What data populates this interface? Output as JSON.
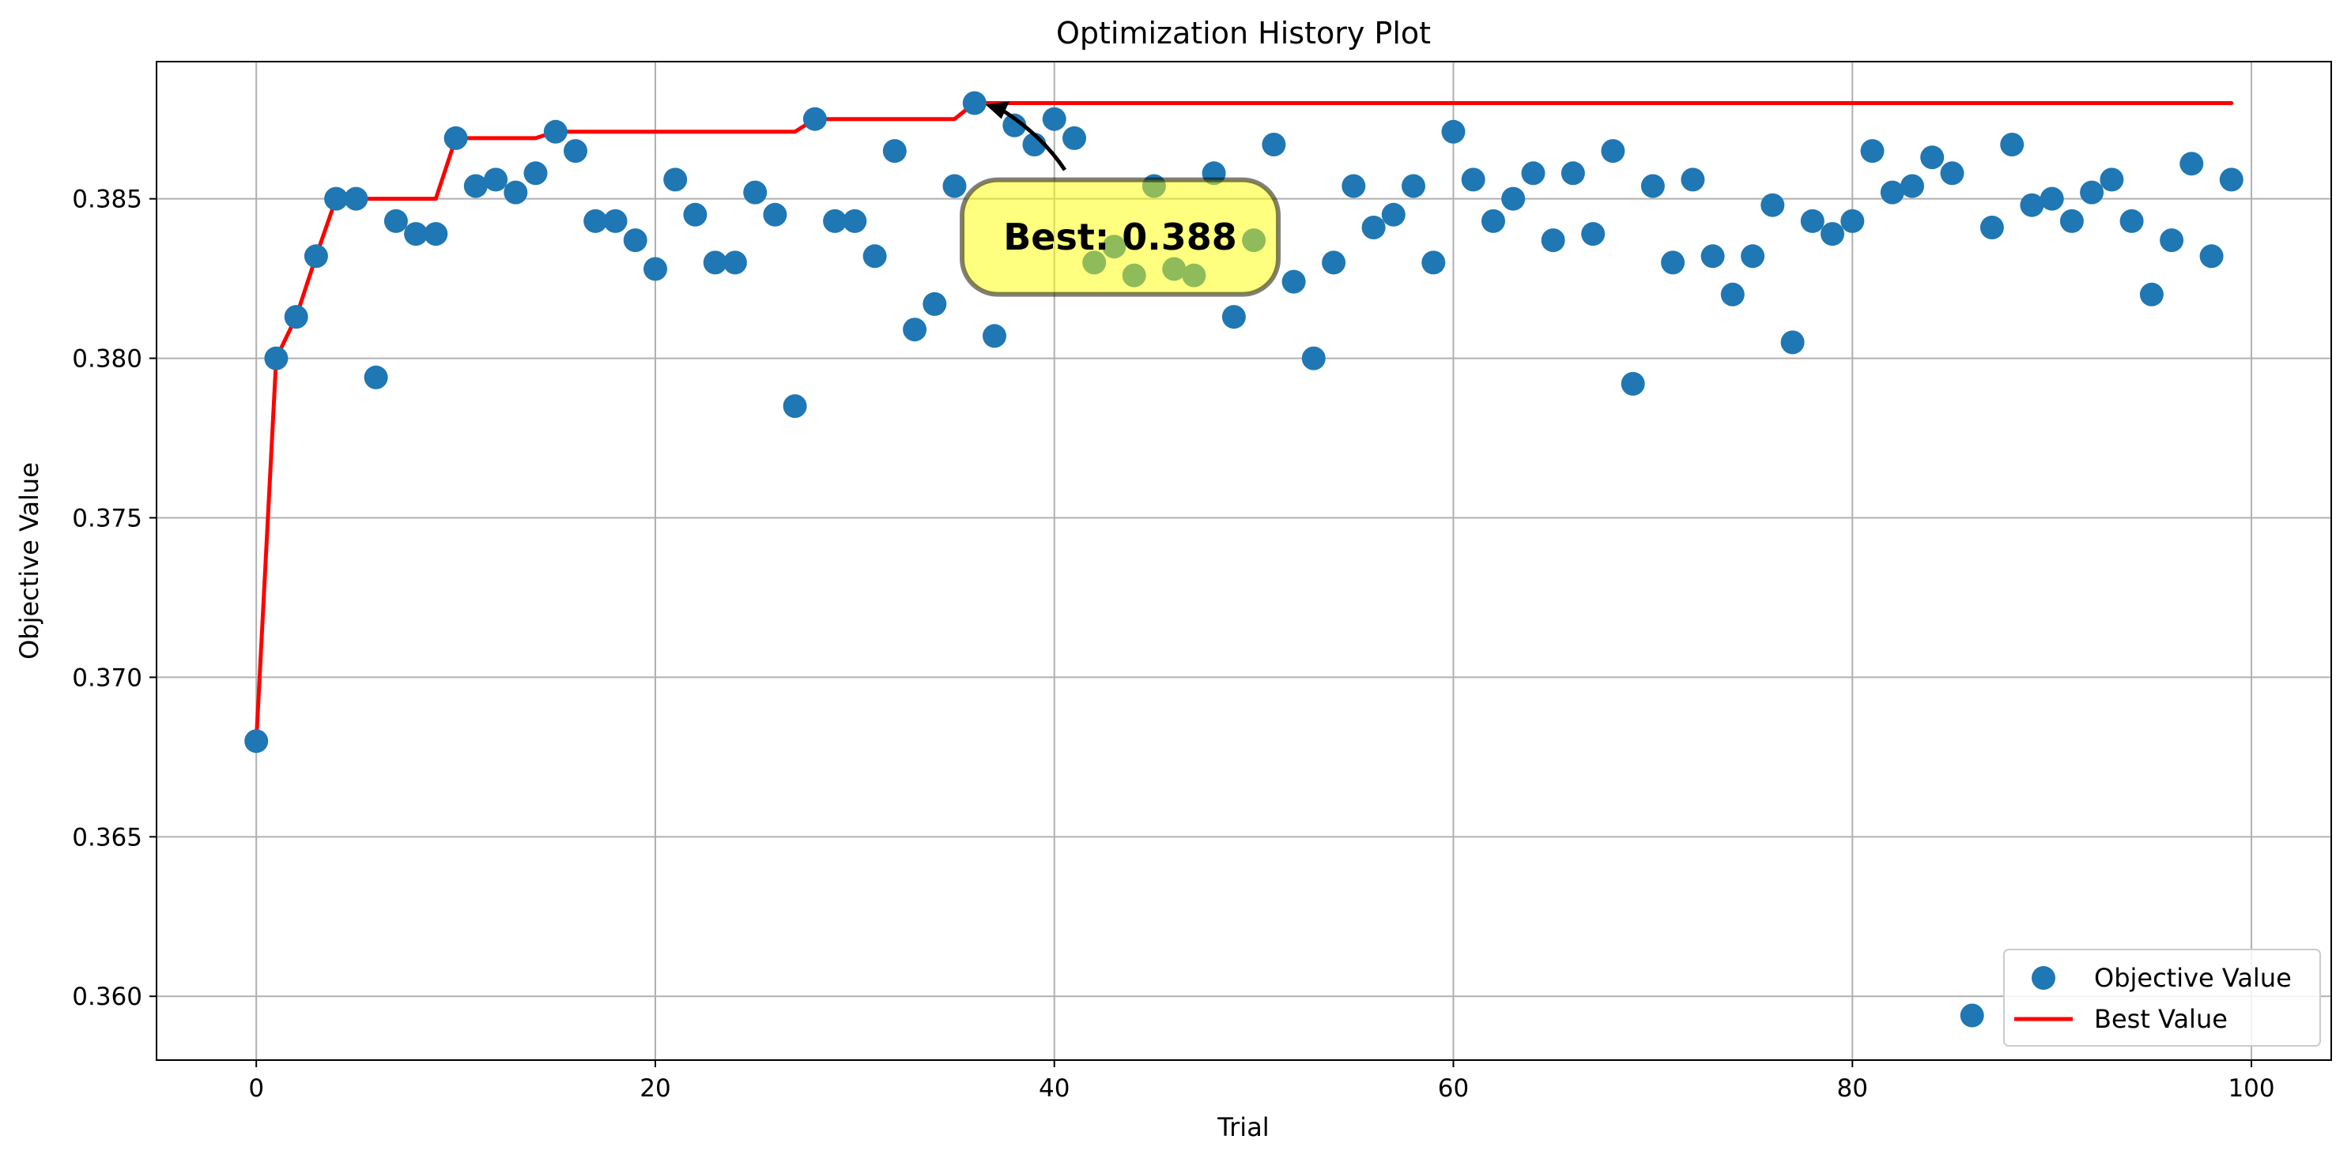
{
  "chart_data": {
    "type": "scatter",
    "title": "Optimization History Plot",
    "xlabel": "Trial",
    "ylabel": "Objective Value",
    "xlim": [
      -5,
      104
    ],
    "ylim": [
      0.358,
      0.3893
    ],
    "xticks": [
      0,
      20,
      40,
      60,
      80,
      100
    ],
    "yticks": [
      0.36,
      0.365,
      0.37,
      0.375,
      0.38,
      0.385
    ],
    "ytick_labels": [
      "0.360",
      "0.365",
      "0.370",
      "0.375",
      "0.380",
      "0.385"
    ],
    "grid": true,
    "legend_position": "lower-right",
    "series": [
      {
        "name": "Objective Value",
        "kind": "scatter",
        "color": "#1f77b4",
        "x": [
          0,
          1,
          2,
          3,
          4,
          5,
          6,
          7,
          8,
          9,
          10,
          11,
          12,
          13,
          14,
          15,
          16,
          17,
          18,
          19,
          20,
          21,
          22,
          23,
          24,
          25,
          26,
          27,
          28,
          29,
          30,
          31,
          32,
          33,
          34,
          35,
          36,
          37,
          38,
          39,
          40,
          41,
          42,
          43,
          44,
          45,
          46,
          47,
          48,
          49,
          50,
          51,
          52,
          53,
          54,
          55,
          56,
          57,
          58,
          59,
          60,
          61,
          62,
          63,
          64,
          65,
          66,
          67,
          68,
          69,
          70,
          71,
          72,
          73,
          74,
          75,
          76,
          77,
          78,
          79,
          80,
          81,
          82,
          83,
          84,
          85,
          86,
          87,
          88,
          89,
          90,
          91,
          92,
          93,
          94,
          95,
          96,
          97,
          98,
          99
        ],
        "y": [
          0.368,
          0.38,
          0.3813,
          0.3832,
          0.385,
          0.385,
          0.3794,
          0.3843,
          0.3839,
          0.3839,
          0.3869,
          0.3854,
          0.3856,
          0.3852,
          0.3858,
          0.3871,
          0.3865,
          0.3843,
          0.3843,
          0.3837,
          0.3828,
          0.3856,
          0.3845,
          0.383,
          0.383,
          0.3852,
          0.3845,
          0.3785,
          0.3875,
          0.3843,
          0.3843,
          0.3832,
          0.3865,
          0.3809,
          0.3817,
          0.3854,
          0.388,
          0.3807,
          0.3873,
          0.3867,
          0.3875,
          0.3869,
          0.383,
          0.3835,
          0.3826,
          0.3854,
          0.3828,
          0.3826,
          0.3858,
          0.3813,
          0.3837,
          0.3867,
          0.3824,
          0.38,
          0.383,
          0.3854,
          0.3841,
          0.3845,
          0.3854,
          0.383,
          0.3871,
          0.3856,
          0.3843,
          0.385,
          0.3858,
          0.3837,
          0.3858,
          0.3839,
          0.3865,
          0.3792,
          0.3854,
          0.383,
          0.3856,
          0.3832,
          0.382,
          0.3832,
          0.3848,
          0.3805,
          0.3843,
          0.3839,
          0.3843,
          0.3865,
          0.3852,
          0.3854,
          0.3863,
          0.3858,
          0.3594,
          0.3841,
          0.3867,
          0.3848,
          0.385,
          0.3843,
          0.3852,
          0.3856,
          0.3843,
          0.382,
          0.3837,
          0.3861,
          0.3832,
          0.3856
        ]
      },
      {
        "name": "Best Value",
        "kind": "line",
        "color": "#ff0000",
        "x": [
          0,
          1,
          2,
          3,
          4,
          5,
          6,
          7,
          8,
          9,
          10,
          11,
          12,
          13,
          14,
          15,
          16,
          17,
          18,
          19,
          20,
          21,
          22,
          23,
          24,
          25,
          26,
          27,
          28,
          29,
          30,
          31,
          32,
          33,
          34,
          35,
          36,
          37,
          38,
          39,
          40,
          41,
          42,
          43,
          44,
          45,
          46,
          47,
          48,
          49,
          50,
          51,
          52,
          53,
          54,
          55,
          56,
          57,
          58,
          59,
          60,
          61,
          62,
          63,
          64,
          65,
          66,
          67,
          68,
          69,
          70,
          71,
          72,
          73,
          74,
          75,
          76,
          77,
          78,
          79,
          80,
          81,
          82,
          83,
          84,
          85,
          86,
          87,
          88,
          89,
          90,
          91,
          92,
          93,
          94,
          95,
          96,
          97,
          98,
          99
        ],
        "y": [
          0.368,
          0.38,
          0.3813,
          0.3832,
          0.385,
          0.385,
          0.385,
          0.385,
          0.385,
          0.385,
          0.3869,
          0.3869,
          0.3869,
          0.3869,
          0.3869,
          0.3871,
          0.3871,
          0.3871,
          0.3871,
          0.3871,
          0.3871,
          0.3871,
          0.3871,
          0.3871,
          0.3871,
          0.3871,
          0.3871,
          0.3871,
          0.3875,
          0.3875,
          0.3875,
          0.3875,
          0.3875,
          0.3875,
          0.3875,
          0.3875,
          0.388,
          0.388,
          0.388,
          0.388,
          0.388,
          0.388,
          0.388,
          0.388,
          0.388,
          0.388,
          0.388,
          0.388,
          0.388,
          0.388,
          0.388,
          0.388,
          0.388,
          0.388,
          0.388,
          0.388,
          0.388,
          0.388,
          0.388,
          0.388,
          0.388,
          0.388,
          0.388,
          0.388,
          0.388,
          0.388,
          0.388,
          0.388,
          0.388,
          0.388,
          0.388,
          0.388,
          0.388,
          0.388,
          0.388,
          0.388,
          0.388,
          0.388,
          0.388,
          0.388,
          0.388,
          0.388,
          0.388,
          0.388,
          0.388,
          0.388,
          0.388,
          0.388,
          0.388,
          0.388,
          0.388,
          0.388,
          0.388,
          0.388,
          0.388,
          0.388,
          0.388,
          0.388,
          0.388,
          0.388
        ]
      }
    ],
    "annotation": {
      "text": "Best: 0.388",
      "target": {
        "x": 36,
        "y": 0.388
      },
      "anchor": {
        "x": 43.3,
        "y": 0.3838
      },
      "box_color": "#ffff00"
    }
  }
}
